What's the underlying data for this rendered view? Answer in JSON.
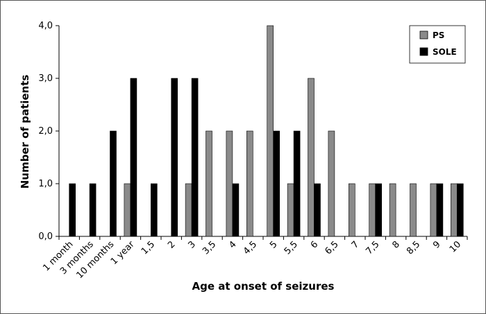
{
  "chart_data": {
    "type": "bar",
    "categories": [
      "1 month",
      "3 months",
      "10 months",
      "1 year",
      "1,5",
      "2",
      "3",
      "3,5",
      "4",
      "4,5",
      "5",
      "5,5",
      "6",
      "6,5",
      "7",
      "7,5",
      "8",
      "8,5",
      "9",
      "10"
    ],
    "series": [
      {
        "name": "PS",
        "values": [
          0,
          0,
          0,
          1,
          0,
          0,
          1,
          2,
          2,
          2,
          4,
          1,
          3,
          2,
          1,
          1,
          1,
          1,
          1,
          1
        ],
        "color": "#8a8a8a"
      },
      {
        "name": "SOLE",
        "values": [
          1,
          1,
          2,
          3,
          1,
          3,
          3,
          0,
          1,
          0,
          2,
          2,
          1,
          0,
          0,
          1,
          0,
          0,
          1,
          1
        ],
        "color": "#000000"
      }
    ],
    "ylabel": "Number of patients",
    "xlabel": "Age at onset of seizures",
    "ylim": [
      0,
      4
    ],
    "yticks": [
      "0,0",
      "1,0",
      "2,0",
      "3,0",
      "4,0"
    ],
    "grid": false,
    "legend": "top-right"
  }
}
